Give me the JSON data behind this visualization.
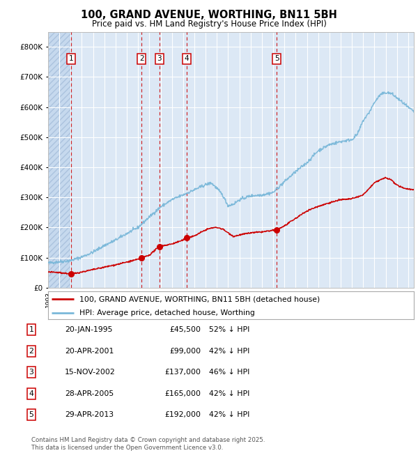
{
  "title": "100, GRAND AVENUE, WORTHING, BN11 5BH",
  "subtitle": "Price paid vs. HM Land Registry's House Price Index (HPI)",
  "hpi_color": "#7ab8d9",
  "price_color": "#cc0000",
  "background_color": "#dce8f5",
  "ylim": [
    0,
    850000
  ],
  "yticks": [
    0,
    100000,
    200000,
    300000,
    400000,
    500000,
    600000,
    700000,
    800000
  ],
  "xlim": [
    1993,
    2025.5
  ],
  "sale_dates_num": [
    1995.05,
    2001.3,
    2002.88,
    2005.32,
    2013.33
  ],
  "sale_prices": [
    45500,
    99000,
    137000,
    165000,
    192000
  ],
  "sale_labels": [
    "1",
    "2",
    "3",
    "4",
    "5"
  ],
  "sale_info": [
    {
      "num": 1,
      "date": "20-JAN-1995",
      "price": "£45,500",
      "pct": "52% ↓ HPI"
    },
    {
      "num": 2,
      "date": "20-APR-2001",
      "price": "£99,000",
      "pct": "42% ↓ HPI"
    },
    {
      "num": 3,
      "date": "15-NOV-2002",
      "price": "£137,000",
      "pct": "46% ↓ HPI"
    },
    {
      "num": 4,
      "date": "28-APR-2005",
      "price": "£165,000",
      "pct": "42% ↓ HPI"
    },
    {
      "num": 5,
      "date": "29-APR-2013",
      "price": "£192,000",
      "pct": "42% ↓ HPI"
    }
  ],
  "legend_label_red": "100, GRAND AVENUE, WORTHING, BN11 5BH (detached house)",
  "legend_label_blue": "HPI: Average price, detached house, Worthing",
  "footer": "Contains HM Land Registry data © Crown copyright and database right 2025.\nThis data is licensed under the Open Government Licence v3.0."
}
